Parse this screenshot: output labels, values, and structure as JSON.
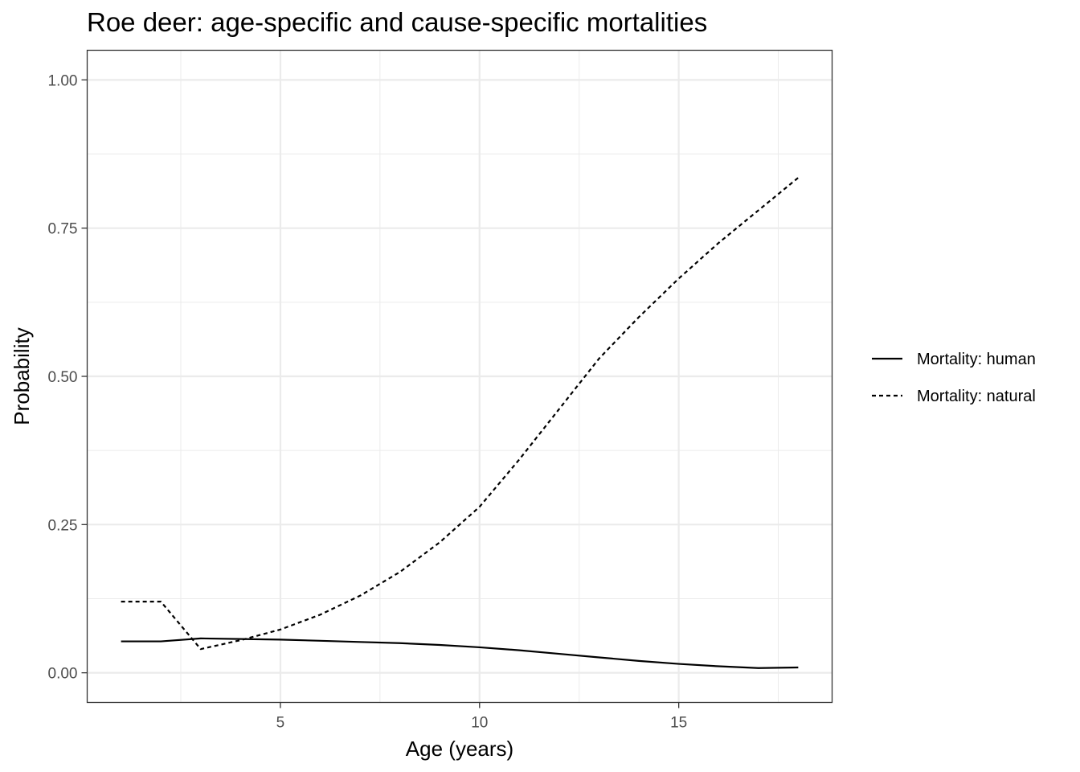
{
  "chart_data": {
    "type": "line",
    "title": "Roe deer: age-specific and cause-specific mortalities",
    "xlabel": "Age (years)",
    "ylabel": "Probability",
    "xlim": [
      0.15,
      18.85
    ],
    "ylim": [
      -0.05,
      1.05
    ],
    "x_ticks": [
      5,
      10,
      15
    ],
    "x_tick_labels": [
      "5",
      "10",
      "15"
    ],
    "x_minor_ticks": [
      2.5,
      7.5,
      12.5,
      17.5
    ],
    "y_ticks": [
      0,
      0.25,
      0.5,
      0.75,
      1.0
    ],
    "y_tick_labels": [
      "0.00",
      "0.25",
      "0.50",
      "0.75",
      "1.00"
    ],
    "y_minor_ticks": [
      0.125,
      0.375,
      0.625,
      0.875
    ],
    "grid": true,
    "legend_position": "right",
    "x": [
      1,
      2,
      3,
      4,
      5,
      6,
      7,
      8,
      9,
      10,
      11,
      12,
      13,
      14,
      15,
      16,
      17,
      18
    ],
    "series": [
      {
        "name": "Mortality: human",
        "line_style": "solid",
        "color": "#000000",
        "values": [
          0.053,
          0.053,
          0.058,
          0.057,
          0.056,
          0.054,
          0.052,
          0.05,
          0.047,
          0.043,
          0.038,
          0.032,
          0.026,
          0.02,
          0.015,
          0.011,
          0.008,
          0.009
        ]
      },
      {
        "name": "Mortality: natural",
        "line_style": "dashed",
        "color": "#000000",
        "values": [
          0.12,
          0.12,
          0.04,
          0.055,
          0.073,
          0.098,
          0.13,
          0.17,
          0.22,
          0.28,
          0.36,
          0.445,
          0.53,
          0.6,
          0.665,
          0.725,
          0.78,
          0.835
        ]
      }
    ]
  }
}
